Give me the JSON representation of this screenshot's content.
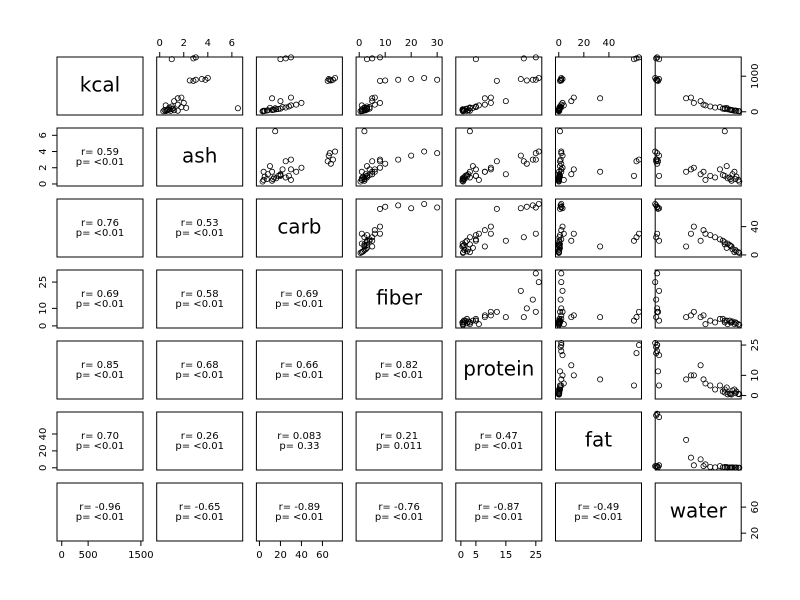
{
  "chart_data": {
    "type": "scatter-matrix",
    "point_color": "#000000",
    "variables": [
      {
        "name": "kcal",
        "lim": [
          -90,
          1540
        ],
        "xticks": [
          0,
          500,
          1500
        ],
        "yticks": [
          0,
          1000
        ]
      },
      {
        "name": "ash",
        "lim": [
          -0.25,
          6.9
        ],
        "xticks": [
          0,
          2,
          4,
          6
        ],
        "yticks": [
          0,
          2,
          4,
          6
        ]
      },
      {
        "name": "carb",
        "lim": [
          -2.9,
          79
        ],
        "xticks": [
          0,
          20,
          40,
          60
        ],
        "yticks": [
          0,
          40
        ]
      },
      {
        "name": "fiber",
        "lim": [
          -1.2,
          31.9
        ],
        "xticks": [
          0,
          10,
          20,
          30
        ],
        "yticks": [
          0,
          10,
          25
        ]
      },
      {
        "name": "protein",
        "lim": [
          -1.7,
          27
        ],
        "xticks": [
          0,
          5,
          15,
          25
        ],
        "yticks": [
          0,
          10,
          25
        ]
      },
      {
        "name": "fat",
        "lim": [
          -2.6,
          66
        ],
        "xticks": [
          0,
          20,
          40
        ],
        "yticks": [
          0,
          20,
          40
        ]
      },
      {
        "name": "water",
        "lim": [
          8,
          97
        ],
        "xticks": [
          20,
          60
        ],
        "yticks": [
          20,
          60
        ]
      }
    ],
    "observations": [
      [
        20,
        0.5,
        4,
        1,
        0.8,
        0.1,
        94
      ],
      [
        35,
        0.6,
        7,
        2,
        1.2,
        0.2,
        91
      ],
      [
        50,
        0.4,
        12,
        2,
        0.5,
        0.2,
        87
      ],
      [
        60,
        0.8,
        14,
        3,
        1,
        0.3,
        85
      ],
      [
        80,
        1.0,
        18,
        3,
        1.5,
        0.4,
        80
      ],
      [
        25,
        0.9,
        5,
        1.5,
        2,
        0.3,
        92
      ],
      [
        45,
        1.2,
        8,
        2.5,
        2.5,
        0.5,
        88
      ],
      [
        70,
        0.7,
        16,
        1,
        0.6,
        0.1,
        83
      ],
      [
        30,
        1.5,
        4,
        1,
        3,
        0.2,
        90
      ],
      [
        90,
        1.1,
        20,
        4,
        2,
        0.5,
        78
      ],
      [
        15,
        0.3,
        3,
        0.5,
        0.7,
        0.1,
        95
      ],
      [
        55,
        0.6,
        13,
        2,
        0.8,
        0.3,
        86
      ],
      [
        110,
        2.2,
        10,
        3,
        4,
        1,
        82
      ],
      [
        130,
        1.8,
        22,
        4,
        5,
        2,
        75
      ],
      [
        100,
        6.5,
        15,
        2,
        3,
        1,
        80
      ],
      [
        150,
        1.0,
        28,
        3,
        5,
        1,
        65
      ],
      [
        200,
        1.5,
        35,
        6,
        8,
        2,
        58
      ],
      [
        120,
        0.8,
        25,
        2,
        3,
        0.5,
        70
      ],
      [
        250,
        2.0,
        40,
        8,
        10,
        3,
        48
      ],
      [
        180,
        0.5,
        30,
        1,
        6,
        4,
        60
      ],
      [
        300,
        1.2,
        20,
        5,
        15,
        10,
        55
      ],
      [
        400,
        1.8,
        30,
        6,
        10,
        12,
        45
      ],
      [
        380,
        1.5,
        12,
        5,
        8,
        33,
        40
      ],
      [
        880,
        2.5,
        68,
        10,
        22,
        2,
        10
      ],
      [
        900,
        3.0,
        70,
        15,
        24,
        1.5,
        9
      ],
      [
        920,
        3.5,
        66,
        20,
        20,
        3,
        12
      ],
      [
        950,
        4.0,
        72,
        25,
        26,
        2,
        8
      ],
      [
        870,
        2.8,
        65,
        8,
        12,
        1,
        11
      ],
      [
        900,
        3.8,
        67,
        30,
        25,
        2,
        10
      ],
      [
        1500,
        2.8,
        25,
        5,
        21,
        62,
        9
      ],
      [
        1530,
        3.0,
        30,
        8,
        25,
        64,
        10
      ],
      [
        1480,
        1.0,
        20,
        3,
        5,
        60,
        12
      ]
    ],
    "correlations": [
      {
        "r": "r= 0.59",
        "p": "p= <0.01"
      },
      {
        "r": "r= 0.76",
        "p": "p= <0.01"
      },
      {
        "r": "r= 0.53",
        "p": "p= <0.01"
      },
      {
        "r": "r= 0.69",
        "p": "p= <0.01"
      },
      {
        "r": "r= 0.58",
        "p": "p= <0.01"
      },
      {
        "r": "r= 0.69",
        "p": "p= <0.01"
      },
      {
        "r": "r= 0.85",
        "p": "p= <0.01"
      },
      {
        "r": "r= 0.68",
        "p": "p= <0.01"
      },
      {
        "r": "r= 0.66",
        "p": "p= <0.01"
      },
      {
        "r": "r= 0.82",
        "p": "p= <0.01"
      },
      {
        "r": "r= 0.70",
        "p": "p= <0.01"
      },
      {
        "r": "r= 0.26",
        "p": "p= <0.01"
      },
      {
        "r": "r= 0.083",
        "p": "p= 0.33"
      },
      {
        "r": "r= 0.21",
        "p": "p= 0.011"
      },
      {
        "r": "r= 0.47",
        "p": "p= <0.01"
      },
      {
        "r": "r= -0.96",
        "p": "p= <0.01"
      },
      {
        "r": "r= -0.65",
        "p": "p= <0.01"
      },
      {
        "r": "r= -0.89",
        "p": "p= <0.01"
      },
      {
        "r": "r= -0.76",
        "p": "p= <0.01"
      },
      {
        "r": "r= -0.87",
        "p": "p= <0.01"
      },
      {
        "r": "r= -0.49",
        "p": "p= <0.01"
      }
    ]
  }
}
